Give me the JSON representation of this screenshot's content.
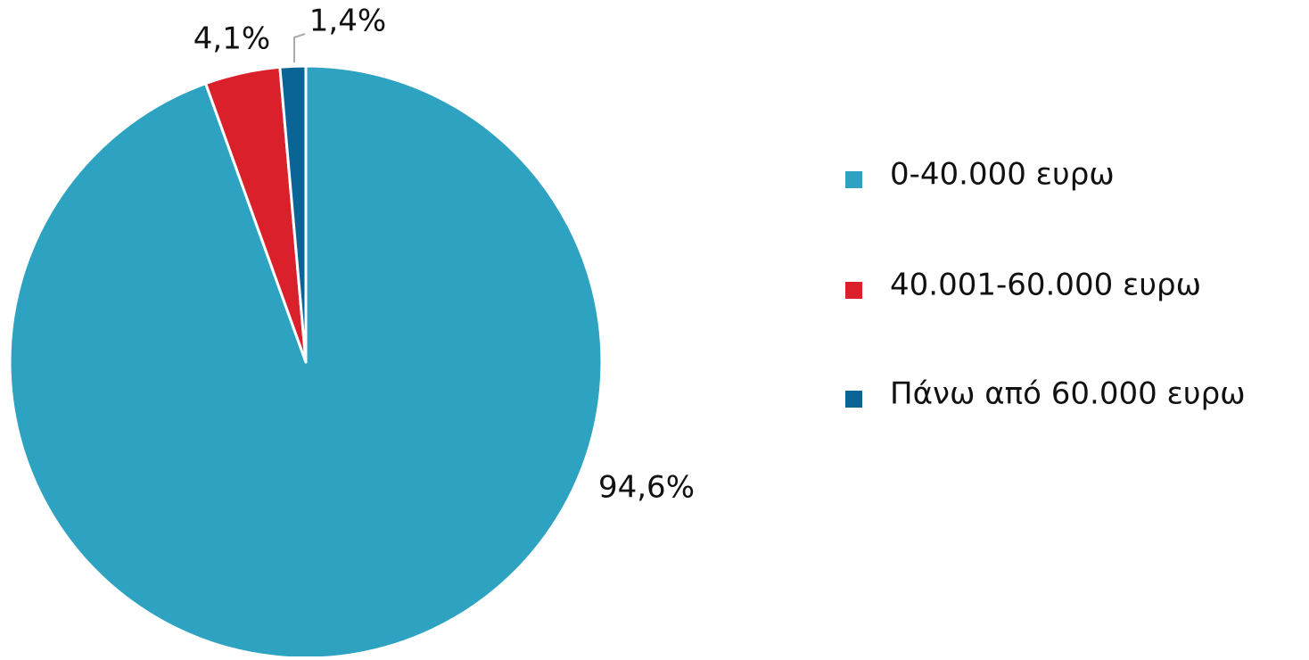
{
  "chart_data": {
    "type": "pie",
    "categories": [
      "0-40.000 ευρω",
      "40.001-60.000 ευρω",
      "Πάνω από 60.000 ευρω"
    ],
    "values": [
      94.6,
      4.1,
      1.4
    ],
    "value_labels": [
      "94,6%",
      "4,1%",
      "1,4%"
    ],
    "colors": [
      "#2ea3c1",
      "#da202b",
      "#0a6496"
    ],
    "legend": "right"
  }
}
